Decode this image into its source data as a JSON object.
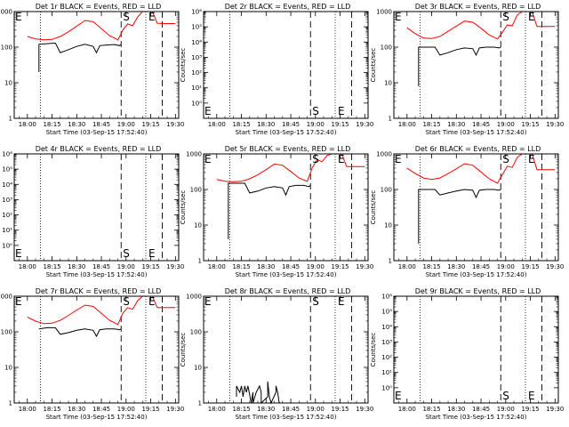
{
  "chart_data": {
    "type": "line",
    "time_ticks": [
      "18:00",
      "18:15",
      "18:30",
      "18:45",
      "19:00",
      "19:15",
      "19:30"
    ],
    "xlabel": "Start Time (03-Sep-15 17:52:40)",
    "ylabel": "Counts/sec",
    "colors": {
      "events": "#000000",
      "lld": "#ff0000",
      "axis": "#000000"
    },
    "event_marker_minutes": [
      8,
      57,
      72,
      82
    ],
    "marker_labels": {
      "s": "S",
      "e": "E"
    },
    "panels": [
      {
        "title": "Det 1r BLACK = Events, RED = LLD",
        "yscale": "log",
        "ylim": [
          1,
          1000
        ],
        "yticks": [
          "1",
          "10",
          "100",
          "1000"
        ],
        "marker_s_minute": 57,
        "marker_e_minute": 72,
        "lld": [
          [
            0,
            200
          ],
          [
            5,
            170
          ],
          [
            10,
            160
          ],
          [
            15,
            165
          ],
          [
            20,
            200
          ],
          [
            25,
            270
          ],
          [
            30,
            390
          ],
          [
            35,
            560
          ],
          [
            40,
            520
          ],
          [
            45,
            330
          ],
          [
            50,
            210
          ],
          [
            55,
            160
          ],
          [
            58,
            300
          ],
          [
            61,
            450
          ],
          [
            64,
            400
          ],
          [
            67,
            700
          ],
          [
            70,
            1000
          ],
          [
            73,
            1000
          ],
          [
            76,
            1000
          ],
          [
            79,
            470
          ],
          [
            84,
            460
          ],
          [
            90,
            460
          ]
        ],
        "events": [
          [
            7,
            20
          ],
          [
            7,
            120
          ],
          [
            12,
            125
          ],
          [
            17,
            130
          ],
          [
            20,
            70
          ],
          [
            25,
            85
          ],
          [
            30,
            105
          ],
          [
            35,
            120
          ],
          [
            40,
            105
          ],
          [
            42,
            70
          ],
          [
            44,
            110
          ],
          [
            48,
            115
          ],
          [
            53,
            118
          ],
          [
            56,
            110
          ],
          [
            57,
            120
          ]
        ]
      },
      {
        "title": "Det 2r BLACK = Events, RED = LLD",
        "yscale": "log",
        "ylim": [
          0.1,
          1000000
        ],
        "yticks": [
          "10⁰",
          "10¹",
          "10²",
          "10³",
          "10⁴",
          "10⁵",
          "10⁶"
        ],
        "marker_s_minute": 57,
        "marker_e_minute": 72,
        "lld": [],
        "events": []
      },
      {
        "title": "Det 3r BLACK = Events, RED = LLD",
        "yscale": "log",
        "ylim": [
          1,
          1000
        ],
        "yticks": [
          "1",
          "10",
          "100",
          "1000"
        ],
        "marker_s_minute": 57,
        "marker_e_minute": 72,
        "lld": [
          [
            0,
            350
          ],
          [
            5,
            240
          ],
          [
            10,
            180
          ],
          [
            15,
            175
          ],
          [
            20,
            200
          ],
          [
            25,
            280
          ],
          [
            30,
            390
          ],
          [
            35,
            540
          ],
          [
            40,
            500
          ],
          [
            45,
            340
          ],
          [
            50,
            220
          ],
          [
            55,
            170
          ],
          [
            58,
            260
          ],
          [
            61,
            420
          ],
          [
            64,
            400
          ],
          [
            67,
            800
          ],
          [
            70,
            1000
          ],
          [
            73,
            1000
          ],
          [
            76,
            1000
          ],
          [
            79,
            380
          ],
          [
            84,
            380
          ],
          [
            90,
            380
          ]
        ],
        "events": [
          [
            7,
            8
          ],
          [
            7,
            100
          ],
          [
            12,
            100
          ],
          [
            17,
            100
          ],
          [
            20,
            60
          ],
          [
            25,
            70
          ],
          [
            30,
            85
          ],
          [
            35,
            95
          ],
          [
            40,
            90
          ],
          [
            42,
            60
          ],
          [
            44,
            95
          ],
          [
            48,
            100
          ],
          [
            53,
            100
          ],
          [
            56,
            95
          ],
          [
            57,
            100
          ]
        ]
      },
      {
        "title": "Det 4r BLACK = Events, RED = LLD",
        "yscale": "log",
        "ylim": [
          0.1,
          1000000
        ],
        "yticks": [
          "10⁰",
          "10¹",
          "10²",
          "10³",
          "10⁴",
          "10⁵",
          "10⁶"
        ],
        "marker_s_minute": 57,
        "marker_e_minute": 72,
        "lld": [],
        "events": []
      },
      {
        "title": "Det 5r BLACK = Events, RED = LLD",
        "yscale": "log",
        "ylim": [
          1,
          1000
        ],
        "yticks": [
          "1",
          "10",
          "100",
          "1000"
        ],
        "marker_s_minute": 57,
        "marker_e_minute": 72,
        "lld": [
          [
            0,
            190
          ],
          [
            5,
            170
          ],
          [
            10,
            165
          ],
          [
            15,
            170
          ],
          [
            20,
            200
          ],
          [
            25,
            260
          ],
          [
            30,
            360
          ],
          [
            35,
            520
          ],
          [
            40,
            480
          ],
          [
            45,
            320
          ],
          [
            50,
            210
          ],
          [
            55,
            170
          ],
          [
            58,
            400
          ],
          [
            61,
            700
          ],
          [
            64,
            600
          ],
          [
            67,
            900
          ],
          [
            70,
            1000
          ],
          [
            73,
            1000
          ],
          [
            76,
            1000
          ],
          [
            79,
            440
          ],
          [
            84,
            440
          ],
          [
            90,
            440
          ]
        ],
        "events": [
          [
            7,
            4
          ],
          [
            7,
            150
          ],
          [
            12,
            150
          ],
          [
            17,
            150
          ],
          [
            20,
            80
          ],
          [
            25,
            90
          ],
          [
            30,
            110
          ],
          [
            35,
            120
          ],
          [
            40,
            110
          ],
          [
            42,
            70
          ],
          [
            44,
            120
          ],
          [
            48,
            130
          ],
          [
            53,
            130
          ],
          [
            56,
            120
          ],
          [
            57,
            130
          ]
        ]
      },
      {
        "title": "Det 6r BLACK = Events, RED = LLD",
        "yscale": "log",
        "ylim": [
          1,
          1000
        ],
        "yticks": [
          "1",
          "10",
          "100",
          "1000"
        ],
        "marker_s_minute": 57,
        "marker_e_minute": 72,
        "lld": [
          [
            0,
            400
          ],
          [
            5,
            280
          ],
          [
            10,
            210
          ],
          [
            15,
            190
          ],
          [
            20,
            210
          ],
          [
            25,
            280
          ],
          [
            30,
            380
          ],
          [
            35,
            530
          ],
          [
            40,
            480
          ],
          [
            45,
            310
          ],
          [
            50,
            200
          ],
          [
            55,
            150
          ],
          [
            58,
            260
          ],
          [
            61,
            450
          ],
          [
            64,
            420
          ],
          [
            67,
            800
          ],
          [
            70,
            1000
          ],
          [
            73,
            1000
          ],
          [
            76,
            1000
          ],
          [
            79,
            360
          ],
          [
            84,
            360
          ],
          [
            90,
            360
          ]
        ],
        "events": [
          [
            7,
            3
          ],
          [
            7,
            100
          ],
          [
            12,
            100
          ],
          [
            17,
            100
          ],
          [
            20,
            70
          ],
          [
            25,
            80
          ],
          [
            30,
            90
          ],
          [
            35,
            100
          ],
          [
            40,
            95
          ],
          [
            42,
            60
          ],
          [
            44,
            95
          ],
          [
            48,
            100
          ],
          [
            53,
            100
          ],
          [
            56,
            95
          ],
          [
            57,
            100
          ]
        ]
      },
      {
        "title": "Det 7r BLACK = Events, RED = LLD",
        "yscale": "log",
        "ylim": [
          1,
          1000
        ],
        "yticks": [
          "1",
          "10",
          "100",
          "1000"
        ],
        "marker_s_minute": 57,
        "marker_e_minute": 72,
        "lld": [
          [
            0,
            260
          ],
          [
            5,
            200
          ],
          [
            10,
            170
          ],
          [
            15,
            175
          ],
          [
            20,
            210
          ],
          [
            25,
            290
          ],
          [
            30,
            410
          ],
          [
            35,
            560
          ],
          [
            40,
            520
          ],
          [
            45,
            330
          ],
          [
            50,
            210
          ],
          [
            55,
            160
          ],
          [
            58,
            330
          ],
          [
            61,
            480
          ],
          [
            64,
            430
          ],
          [
            67,
            750
          ],
          [
            70,
            1000
          ],
          [
            73,
            1000
          ],
          [
            76,
            1000
          ],
          [
            79,
            480
          ],
          [
            84,
            480
          ],
          [
            90,
            480
          ]
        ],
        "events": [
          [
            7,
            120
          ],
          [
            12,
            130
          ],
          [
            17,
            130
          ],
          [
            20,
            85
          ],
          [
            25,
            95
          ],
          [
            30,
            110
          ],
          [
            35,
            120
          ],
          [
            40,
            110
          ],
          [
            42,
            75
          ],
          [
            44,
            115
          ],
          [
            48,
            120
          ],
          [
            53,
            120
          ],
          [
            56,
            115
          ],
          [
            57,
            120
          ]
        ]
      },
      {
        "title": "Det 8r BLACK = Events, RED = LLD",
        "yscale": "log",
        "ylim": [
          1,
          1000
        ],
        "yticks": [
          "1",
          "10",
          "100",
          "1000"
        ],
        "marker_s_minute": 57,
        "marker_e_minute": 72,
        "lld": [],
        "events": [
          [
            12,
            1.5
          ],
          [
            12,
            3
          ],
          [
            14,
            2
          ],
          [
            15,
            3
          ],
          [
            16,
            1.5
          ],
          [
            17,
            3
          ],
          [
            18,
            2
          ],
          [
            19,
            3
          ],
          [
            21,
            1
          ],
          [
            22,
            2
          ],
          [
            22,
            1
          ],
          [
            24,
            2
          ],
          [
            26,
            3
          ],
          [
            27,
            2
          ],
          [
            27,
            1
          ],
          [
            31,
            1.5
          ],
          [
            31,
            4
          ],
          [
            32,
            1.5
          ],
          [
            33,
            1
          ],
          [
            36,
            2
          ],
          [
            36,
            3
          ],
          [
            37,
            2
          ],
          [
            38,
            1
          ]
        ]
      },
      {
        "title": "Det 9r BLACK = Events, RED = LLD",
        "yscale": "log",
        "ylim": [
          0.1,
          1000000
        ],
        "yticks": [
          "10⁰",
          "10¹",
          "10²",
          "10³",
          "10⁴",
          "10⁵",
          "10⁶"
        ],
        "marker_s_minute": 57,
        "marker_e_minute": 72,
        "lld": [],
        "events": []
      }
    ]
  }
}
